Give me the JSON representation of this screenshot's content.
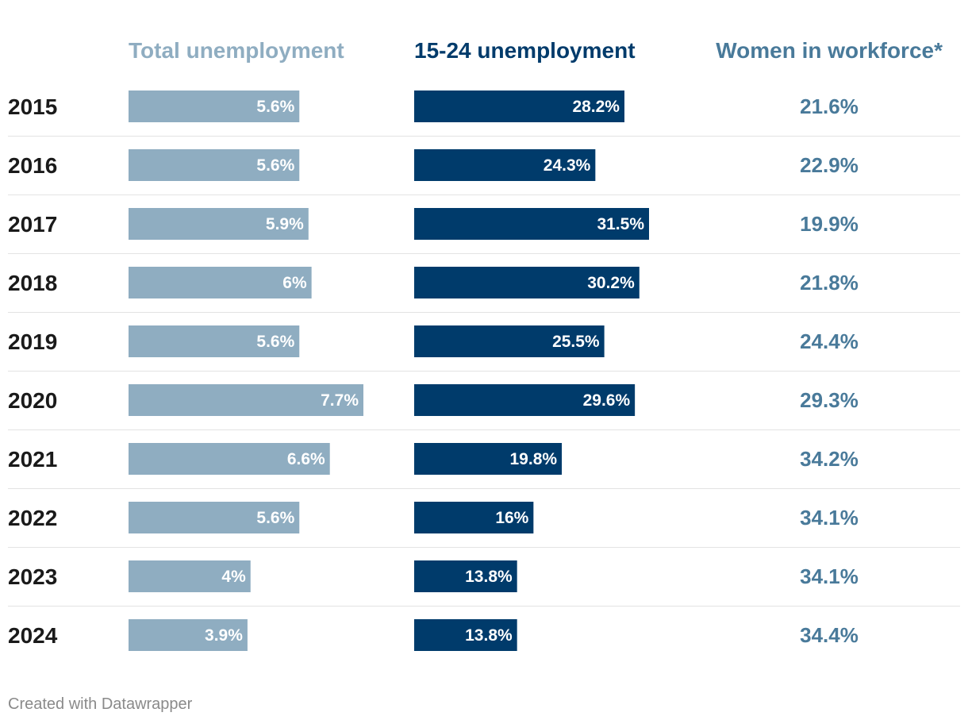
{
  "chart_data": {
    "type": "table",
    "columns": [
      {
        "key": "total",
        "header": "Total unemployment",
        "color": "#8fadc1"
      },
      {
        "key": "youth",
        "header": "15-24 unemployment",
        "color": "#003b6b"
      },
      {
        "key": "women",
        "header": "Women in workforce*",
        "color": "#497a9a"
      }
    ],
    "rows": [
      {
        "year": "2015",
        "total": 5.6,
        "total_label": "5.6%",
        "youth": 28.2,
        "youth_label": "28.2%",
        "women_label": "21.6%"
      },
      {
        "year": "2016",
        "total": 5.6,
        "total_label": "5.6%",
        "youth": 24.3,
        "youth_label": "24.3%",
        "women_label": "22.9%"
      },
      {
        "year": "2017",
        "total": 5.9,
        "total_label": "5.9%",
        "youth": 31.5,
        "youth_label": "31.5%",
        "women_label": "19.9%"
      },
      {
        "year": "2018",
        "total": 6.0,
        "total_label": "6%",
        "youth": 30.2,
        "youth_label": "30.2%",
        "women_label": "21.8%"
      },
      {
        "year": "2019",
        "total": 5.6,
        "total_label": "5.6%",
        "youth": 25.5,
        "youth_label": "25.5%",
        "women_label": "24.4%"
      },
      {
        "year": "2020",
        "total": 7.7,
        "total_label": "7.7%",
        "youth": 29.6,
        "youth_label": "29.6%",
        "women_label": "29.3%"
      },
      {
        "year": "2021",
        "total": 6.6,
        "total_label": "6.6%",
        "youth": 19.8,
        "youth_label": "19.8%",
        "women_label": "34.2%"
      },
      {
        "year": "2022",
        "total": 5.6,
        "total_label": "5.6%",
        "youth": 16.0,
        "youth_label": "16%",
        "women_label": "34.1%"
      },
      {
        "year": "2023",
        "total": 4.0,
        "total_label": "4%",
        "youth": 13.8,
        "youth_label": "13.8%",
        "women_label": "34.1%"
      },
      {
        "year": "2024",
        "total": 3.9,
        "total_label": "3.9%",
        "youth": 13.8,
        "youth_label": "13.8%",
        "women_label": "34.4%"
      }
    ],
    "total_max": 7.7,
    "youth_max": 31.5
  },
  "footer": "Created with Datawrapper"
}
